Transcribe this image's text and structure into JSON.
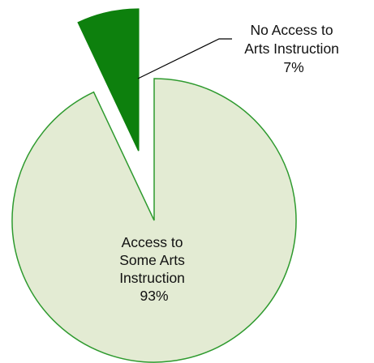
{
  "chart_data": {
    "type": "pie",
    "slices": [
      {
        "label_lines": [
          "Access to",
          "Some Arts",
          "Instruction"
        ],
        "value": 93,
        "value_label": "93%",
        "color": "#E3EBD3",
        "stroke": "#2E9A2E",
        "exploded": false
      },
      {
        "label_lines": [
          "No Access to",
          "Arts Instruction"
        ],
        "value": 7,
        "value_label": "7%",
        "color": "#0D800D",
        "stroke": "#0D800D",
        "exploded": true
      }
    ],
    "legend": "none"
  }
}
